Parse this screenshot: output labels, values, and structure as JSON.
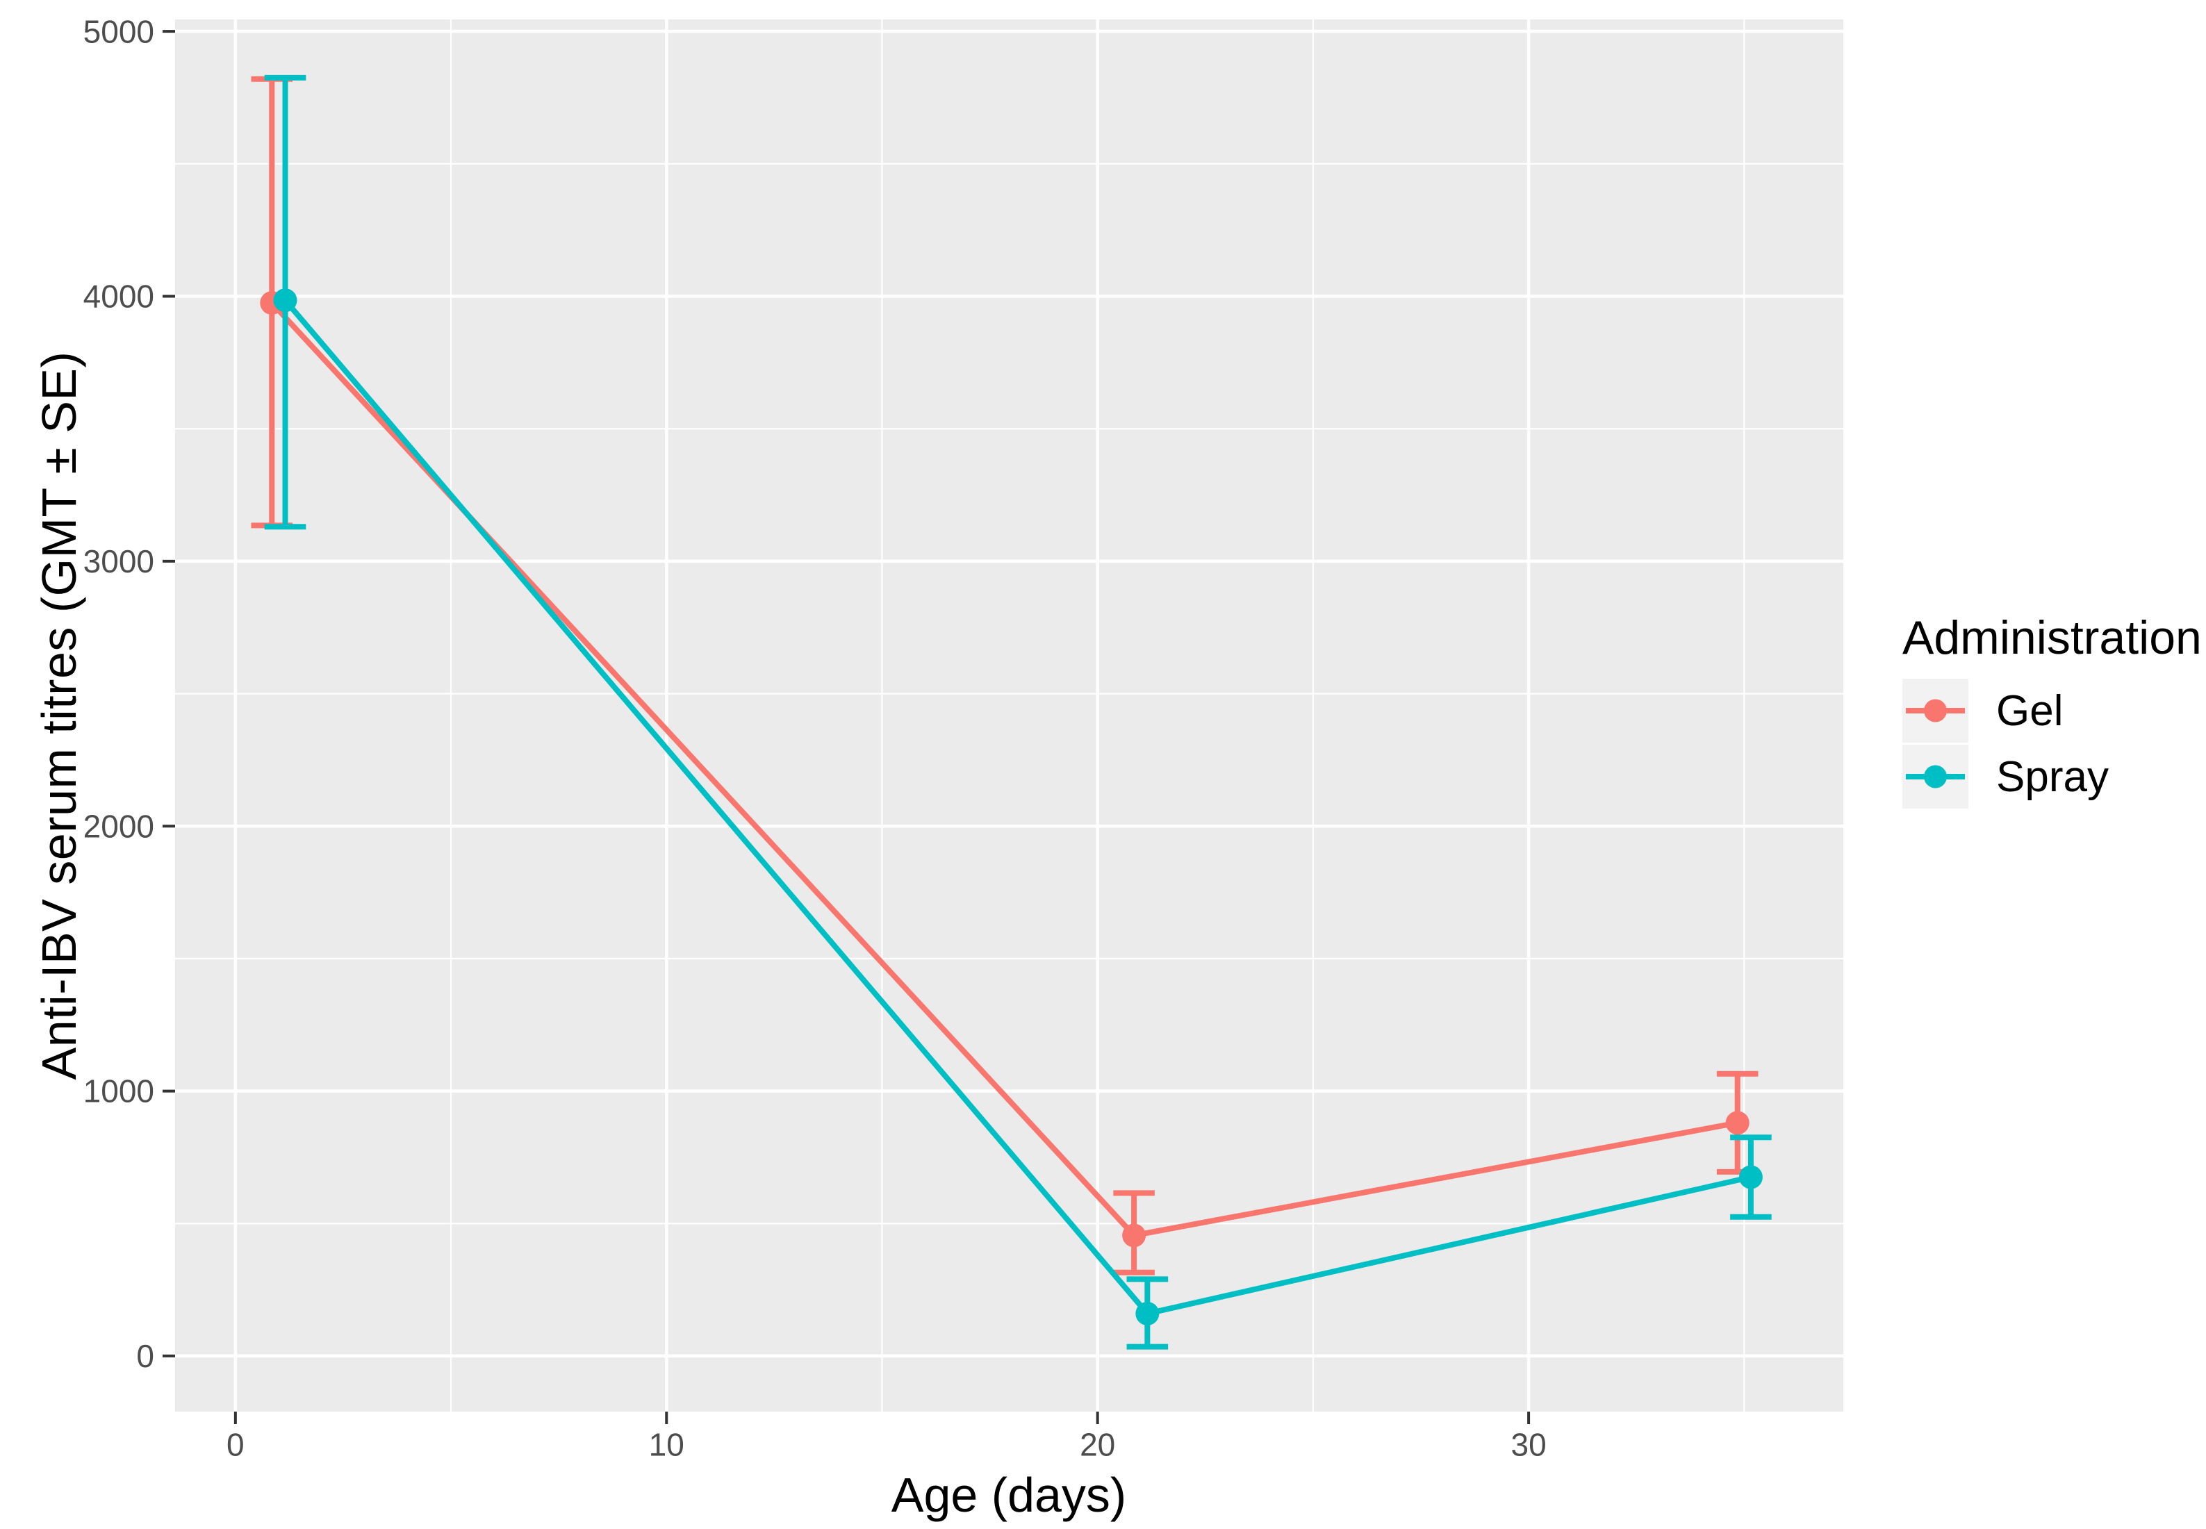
{
  "figure": {
    "background": "#FFFFFF",
    "panel_background": "#EBEBEB",
    "gridline_color": "#FFFFFF",
    "legend_key_background": "#F2F2F2",
    "tick_mark_color": "#333333",
    "tick_label_color": "#4D4D4D",
    "title_color": "#000000"
  },
  "chart_data": {
    "type": "line",
    "title": "",
    "xlabel": "Age (days)",
    "ylabel": "Anti-IBV serum titres (GMT ± SE)",
    "legend_title": "Administration",
    "legend_position": "right",
    "grid": true,
    "error_bars": true,
    "xlim": [
      -1.4,
      37.3
    ],
    "ylim": [
      -210,
      5045
    ],
    "x_major_ticks": [
      0,
      10,
      20,
      30
    ],
    "x_minor_gridlines": [
      5,
      15,
      25,
      35
    ],
    "y_major_ticks": [
      0,
      1000,
      2000,
      3000,
      4000,
      5000
    ],
    "y_minor_gridlines": [
      500,
      1500,
      2500,
      3500,
      4500
    ],
    "dodge_offset_days": 0.155,
    "errorbar_cap_halfwidth_days": 0.48,
    "series": [
      {
        "name": "Gel",
        "color": "#F8766D",
        "x": [
          1,
          21,
          35
        ],
        "y": [
          3975,
          455,
          880
        ],
        "y_low": [
          3135,
          315,
          695
        ],
        "y_high": [
          4820,
          615,
          1065
        ]
      },
      {
        "name": "Spray",
        "color": "#00BFC4",
        "x": [
          1,
          21,
          35
        ],
        "y": [
          3985,
          160,
          675
        ],
        "y_low": [
          3130,
          35,
          525
        ],
        "y_high": [
          4825,
          290,
          825
        ]
      }
    ]
  }
}
